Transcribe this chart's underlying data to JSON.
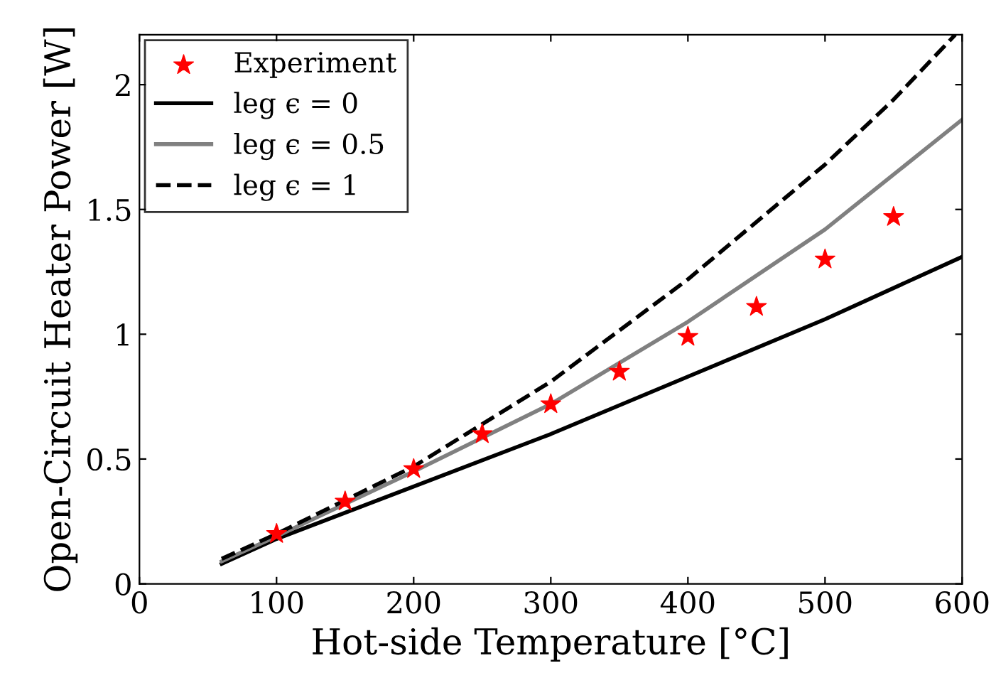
{
  "chart_data": {
    "type": "line",
    "xlabel": "Hot-side Temperature [°C]",
    "ylabel": "Open-Circuit Heater Power [W]",
    "xlim": [
      0,
      600
    ],
    "xticks": [
      0,
      100,
      200,
      300,
      400,
      500,
      600
    ],
    "ylim": [
      0,
      2.2
    ],
    "yticks": [
      0,
      0.5,
      1,
      1.5,
      2
    ],
    "grid": false,
    "legend": "top left",
    "series": [
      {
        "name": "Experiment",
        "type": "scatter",
        "marker": "star",
        "color": "#ff0000",
        "x": [
          100,
          150,
          200,
          250,
          300,
          350,
          400,
          450,
          500,
          550
        ],
        "values": [
          0.2,
          0.33,
          0.46,
          0.6,
          0.72,
          0.85,
          0.99,
          1.11,
          1.3,
          1.47
        ]
      },
      {
        "name": "leg ϵ = 0",
        "color": "#000000",
        "line_style": "solid",
        "x": [
          60,
          100,
          200,
          300,
          400,
          500,
          600
        ],
        "values": [
          0.08,
          0.18,
          0.39,
          0.6,
          0.83,
          1.06,
          1.31
        ]
      },
      {
        "name": "leg ϵ = 0.5",
        "color": "#808080",
        "line_style": "solid",
        "x": [
          60,
          100,
          200,
          300,
          400,
          500,
          600
        ],
        "values": [
          0.09,
          0.19,
          0.45,
          0.72,
          1.05,
          1.42,
          1.86
        ]
      },
      {
        "name": "leg ϵ = 1",
        "color": "#000000",
        "line_style": "dashed",
        "x": [
          60,
          100,
          200,
          300,
          400,
          500,
          550,
          595
        ],
        "values": [
          0.1,
          0.2,
          0.47,
          0.81,
          1.22,
          1.68,
          1.94,
          2.2
        ]
      }
    ]
  }
}
